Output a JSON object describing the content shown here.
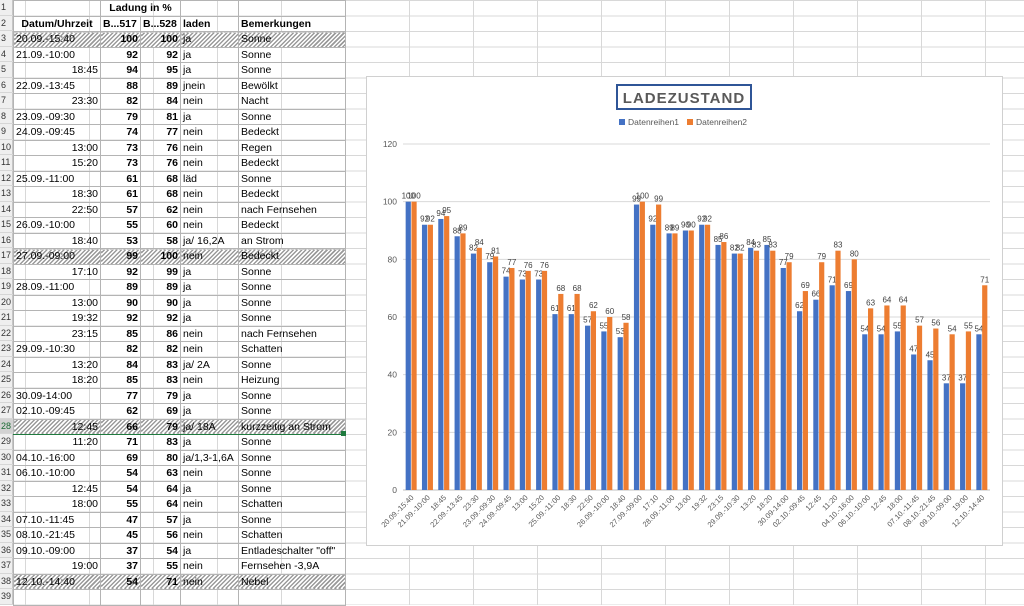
{
  "sheet": {
    "row_numbers": [
      "1",
      "2",
      "3",
      "4",
      "5",
      "6",
      "7",
      "8",
      "9",
      "10",
      "11",
      "12",
      "13",
      "14",
      "15",
      "16",
      "17",
      "18",
      "19",
      "20",
      "21",
      "22",
      "23",
      "24",
      "25",
      "26",
      "27",
      "28",
      "29",
      "30",
      "31",
      "32",
      "33",
      "34",
      "35",
      "36",
      "37",
      "38",
      "39"
    ],
    "header1": {
      "ladung": "Ladung in %"
    },
    "header2": {
      "datum": "Datum/Uhrzeit",
      "b517": "B...517",
      "b528": "B...528",
      "laden": "laden",
      "bem": "Bemerkungen"
    },
    "rows": [
      {
        "dt": "20.09.-15:40",
        "a": "100",
        "b": "100",
        "laden": "ja",
        "bem": "Sonne"
      },
      {
        "dt": "21.09.-10:00",
        "a": "92",
        "b": "92",
        "laden": "ja",
        "bem": "Sonne"
      },
      {
        "dt": "18:45",
        "a": "94",
        "b": "95",
        "laden": "ja",
        "bem": "Sonne"
      },
      {
        "dt": "22.09.-13:45",
        "a": "88",
        "b": "89",
        "laden": "jnein",
        "bem": "Bewölkt"
      },
      {
        "dt": "23:30",
        "a": "82",
        "b": "84",
        "laden": "nein",
        "bem": "Nacht"
      },
      {
        "dt": "23.09.-09:30",
        "a": "79",
        "b": "81",
        "laden": "ja",
        "bem": "Sonne"
      },
      {
        "dt": "24.09.-09:45",
        "a": "74",
        "b": "77",
        "laden": "nein",
        "bem": "Bedeckt"
      },
      {
        "dt": "13:00",
        "a": "73",
        "b": "76",
        "laden": "nein",
        "bem": "Regen"
      },
      {
        "dt": "15:20",
        "a": "73",
        "b": "76",
        "laden": "nein",
        "bem": "Bedeckt"
      },
      {
        "dt": "25.09.-11:00",
        "a": "61",
        "b": "68",
        "laden": "läd",
        "bem": "Sonne"
      },
      {
        "dt": "18:30",
        "a": "61",
        "b": "68",
        "laden": "nein",
        "bem": "Bedeckt"
      },
      {
        "dt": "22:50",
        "a": "57",
        "b": "62",
        "laden": "nein",
        "bem": "nach Fernsehen"
      },
      {
        "dt": "26.09.-10:00",
        "a": "55",
        "b": "60",
        "laden": "nein",
        "bem": "Bedeckt"
      },
      {
        "dt": "18:40",
        "a": "53",
        "b": "58",
        "laden": "ja/ 16,2A",
        "bem": "an Strom"
      },
      {
        "dt": "27.09.-09:00",
        "a": "99",
        "b": "100",
        "laden": "nein",
        "bem": "Bedeckt"
      },
      {
        "dt": "17:10",
        "a": "92",
        "b": "99",
        "laden": "ja",
        "bem": "Sonne"
      },
      {
        "dt": "28.09.-11:00",
        "a": "89",
        "b": "89",
        "laden": "ja",
        "bem": "Sonne"
      },
      {
        "dt": "13:00",
        "a": "90",
        "b": "90",
        "laden": "ja",
        "bem": "Sonne"
      },
      {
        "dt": "19:32",
        "a": "92",
        "b": "92",
        "laden": "ja",
        "bem": "Sonne"
      },
      {
        "dt": "23:15",
        "a": "85",
        "b": "86",
        "laden": "nein",
        "bem": "nach Fernsehen"
      },
      {
        "dt": "29.09.-10:30",
        "a": "82",
        "b": "82",
        "laden": "nein",
        "bem": "Schatten"
      },
      {
        "dt": "13:20",
        "a": "84",
        "b": "83",
        "laden": "ja/ 2A",
        "bem": "Sonne"
      },
      {
        "dt": "18:20",
        "a": "85",
        "b": "83",
        "laden": "nein",
        "bem": "Heizung"
      },
      {
        "dt": "30.09-14:00",
        "a": "77",
        "b": "79",
        "laden": "ja",
        "bem": "Sonne"
      },
      {
        "dt": "02.10.-09:45",
        "a": "62",
        "b": "69",
        "laden": "ja",
        "bem": "Sonne"
      },
      {
        "dt": "12:45",
        "a": "66",
        "b": "79",
        "laden": "ja/ 18A",
        "bem": "kurzzeitig an Strom"
      },
      {
        "dt": "11:20",
        "a": "71",
        "b": "83",
        "laden": "ja",
        "bem": "Sonne"
      },
      {
        "dt": "04.10.-16:00",
        "a": "69",
        "b": "80",
        "laden": "ja/1,3-1,6A",
        "bem": "Sonne"
      },
      {
        "dt": "06.10.-10:00",
        "a": "54",
        "b": "63",
        "laden": "nein",
        "bem": "Sonne"
      },
      {
        "dt": "12:45",
        "a": "54",
        "b": "64",
        "laden": "ja",
        "bem": "Sonne"
      },
      {
        "dt": "18:00",
        "a": "55",
        "b": "64",
        "laden": "nein",
        "bem": "Schatten"
      },
      {
        "dt": "07.10.-11:45",
        "a": "47",
        "b": "57",
        "laden": "ja",
        "bem": "Sonne"
      },
      {
        "dt": "08.10.-21:45",
        "a": "45",
        "b": "56",
        "laden": "nein",
        "bem": "Schatten"
      },
      {
        "dt": "09.10.-09:00",
        "a": "37",
        "b": "54",
        "laden": "ja",
        "bem": "Entladeschalter \"off\""
      },
      {
        "dt": "19:00",
        "a": "37",
        "b": "55",
        "laden": "nein",
        "bem": "Fernsehen -3,9A"
      },
      {
        "dt": "12.10.-14:40",
        "a": "54",
        "b": "71",
        "laden": "nein",
        "bem": "Nebel"
      }
    ]
  },
  "colors": {
    "series1": "#4472c4",
    "series2": "#ed7d31",
    "grid": "#d9d9d9",
    "title_border": "#2f5597",
    "title_text": "#595959"
  },
  "chart_data": {
    "type": "bar",
    "title": "LADEZUSTAND",
    "legend_position": "top",
    "grid": true,
    "ylim": [
      0,
      120
    ],
    "yticks": [
      "0",
      "20",
      "40",
      "60",
      "80",
      "100",
      "120"
    ],
    "categories": [
      "20.09.-15:40",
      "21.09.-10:00",
      "18:45",
      "22.09.-13:45",
      "23:30",
      "23.09.-09:30",
      "24.09.-09:45",
      "13:00",
      "15:20",
      "25.09.-11:00",
      "18:30",
      "22:50",
      "26.09.-10:00",
      "18:40",
      "27.09.-09:00",
      "17:10",
      "28.09.-11:00",
      "13:00",
      "19:32",
      "23:15",
      "29.09.-10:30",
      "13:20",
      "18:20",
      "30.09-14:00",
      "02.10.-09:45",
      "12:45",
      "11:20",
      "04.10.-16:00",
      "06.10.-10:00",
      "12:45",
      "18:00",
      "07.10.-11:45",
      "08.10.-21:45",
      "09.10.-09:00",
      "19:00",
      "12.10.-14:40"
    ],
    "series": [
      {
        "name": "Datenreihen1",
        "values": [
          100,
          92,
          94,
          88,
          82,
          79,
          74,
          73,
          73,
          61,
          61,
          57,
          55,
          53,
          99,
          92,
          89,
          90,
          92,
          85,
          82,
          84,
          85,
          77,
          62,
          66,
          71,
          69,
          54,
          54,
          55,
          47,
          45,
          37,
          37,
          54
        ]
      },
      {
        "name": "Datenreihen2",
        "values": [
          100,
          92,
          95,
          89,
          84,
          81,
          77,
          76,
          76,
          68,
          68,
          62,
          60,
          58,
          100,
          99,
          89,
          90,
          92,
          86,
          82,
          83,
          83,
          79,
          69,
          79,
          83,
          80,
          63,
          64,
          64,
          57,
          56,
          54,
          55,
          71
        ]
      }
    ]
  }
}
